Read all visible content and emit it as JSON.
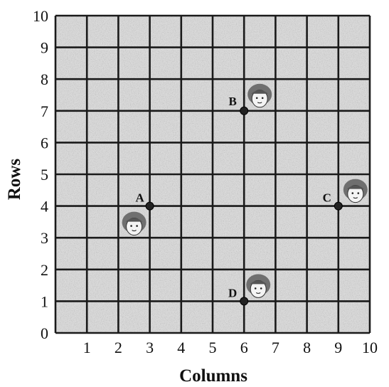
{
  "chart_data": {
    "type": "scatter",
    "xlabel": "Columns",
    "ylabel": "Rows",
    "xlim": [
      0,
      10
    ],
    "ylim": [
      0,
      10
    ],
    "x_ticks": [
      "1",
      "2",
      "3",
      "4",
      "5",
      "6",
      "7",
      "8",
      "9",
      "10"
    ],
    "y_ticks": [
      "0",
      "1",
      "2",
      "3",
      "4",
      "5",
      "6",
      "7",
      "8",
      "9",
      "10"
    ],
    "grid": true,
    "points": [
      {
        "label": "A",
        "x": 3,
        "y": 4,
        "icon": "child-face-icon"
      },
      {
        "label": "B",
        "x": 6,
        "y": 7,
        "icon": "child-face-icon"
      },
      {
        "label": "C",
        "x": 9,
        "y": 4,
        "icon": "child-face-icon"
      },
      {
        "label": "D",
        "x": 6,
        "y": 1,
        "icon": "child-face-icon"
      }
    ]
  }
}
